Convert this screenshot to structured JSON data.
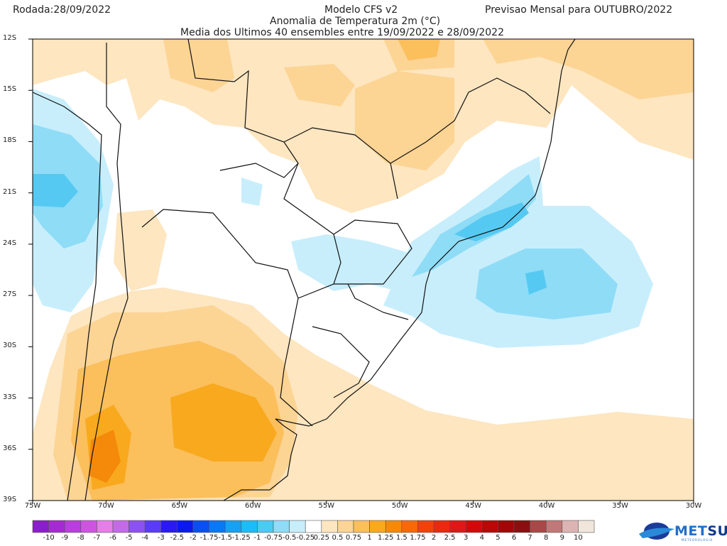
{
  "header": {
    "run_date": "Rodada:28/09/2022",
    "model": "Modelo CFS v2",
    "forecast": "Previsao Mensal para OUTUBRO/2022",
    "variable": "Anomalia de Temperatura 2m (°C)",
    "period": "Media dos Ultimos 40 ensembles entre 19/09/2022 e 28/09/2022"
  },
  "map": {
    "lat_labels": [
      "12S",
      "15S",
      "18S",
      "21S",
      "24S",
      "27S",
      "30S",
      "33S",
      "36S",
      "39S"
    ],
    "lon_labels": [
      "75W",
      "70W",
      "65W",
      "60W",
      "55W",
      "50W",
      "45W",
      "40W",
      "35W",
      "30W"
    ]
  },
  "colorbar": {
    "labels": [
      "-10",
      "-9",
      "-8",
      "-7",
      "-6",
      "-5",
      "-4",
      "-3",
      "-2.5",
      "-2",
      "-1.75",
      "-1.5",
      "-1.25",
      "-1",
      "-0.75",
      "-0.5",
      "-0.25",
      "0.25",
      "0.5",
      "0.75",
      "1",
      "1.25",
      "1.5",
      "1.75",
      "2",
      "2.5",
      "3",
      "4",
      "5",
      "6",
      "7",
      "8",
      "9",
      "10"
    ],
    "colors": [
      "#8a1fc8",
      "#a42bd0",
      "#b83fdc",
      "#cc55e0",
      "#e67ee8",
      "#c36be6",
      "#8c52ee",
      "#5a3cf5",
      "#2a18f6",
      "#0a18f4",
      "#0a50f0",
      "#0a78f0",
      "#1aa0ee",
      "#1cbcf4",
      "#4ccaf4",
      "#8edcf8",
      "#c8eefc",
      "#ffffff",
      "#fde6c0",
      "#fcd494",
      "#fbbf5c",
      "#f9a91e",
      "#f58a0a",
      "#f46a0a",
      "#f0420f",
      "#e82a10",
      "#dc1818",
      "#d00a0a",
      "#b80808",
      "#a00808",
      "#881010",
      "#a84848",
      "#c07878",
      "#dcb4b4",
      "#f0e6dc"
    ]
  },
  "logo": {
    "text_a": "MET",
    "text_b": "SUL",
    "subtitle": "METEOROLOGIA"
  }
}
